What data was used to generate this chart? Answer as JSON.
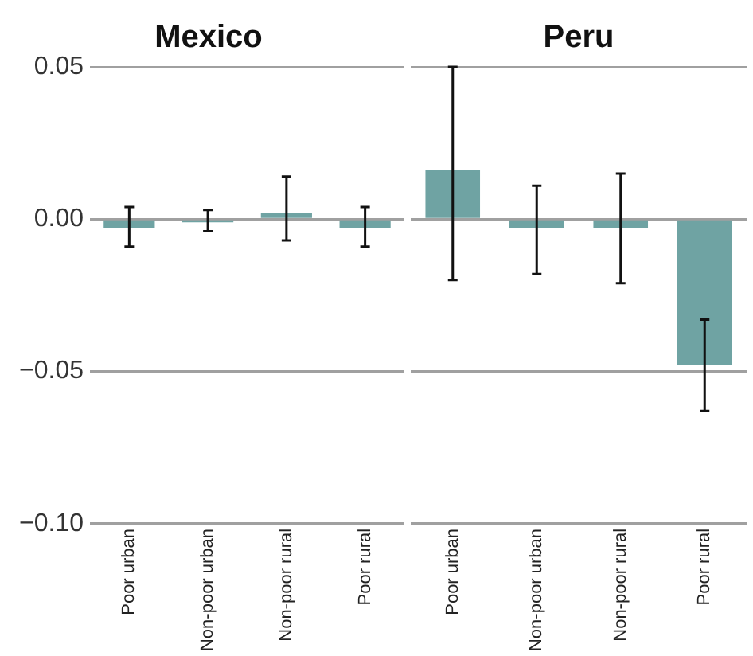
{
  "chart_data": [
    {
      "type": "bar",
      "title": "Mexico",
      "categories": [
        "Poor urban",
        "Non-poor urban",
        "Non-poor rural",
        "Poor rural"
      ],
      "values": [
        -0.003,
        -0.001,
        0.002,
        -0.003
      ],
      "color": "#6fa3a3",
      "errors": [
        [
          -0.009,
          0.004
        ],
        [
          -0.004,
          0.003
        ],
        [
          -0.007,
          0.014
        ],
        [
          -0.009,
          0.004
        ]
      ],
      "ylim": [
        -0.1,
        0.05
      ],
      "yticks": [
        {
          "value": -0.1,
          "label": "−0.10"
        },
        {
          "value": -0.05,
          "label": "−0.05"
        },
        {
          "value": 0,
          "label": "0.00"
        },
        {
          "value": 0.05,
          "label": "0.05"
        }
      ],
      "grid": "y",
      "legend": false
    },
    {
      "type": "bar",
      "title": "Peru",
      "categories": [
        "Poor urban",
        "Non-poor urban",
        "Non-poor rural",
        "Poor rural"
      ],
      "values": [
        0.016,
        -0.003,
        -0.003,
        -0.048
      ],
      "color": "#6fa3a3",
      "errors": [
        [
          -0.02,
          0.05
        ],
        [
          -0.018,
          0.011
        ],
        [
          -0.021,
          0.015
        ],
        [
          -0.063,
          -0.033
        ]
      ],
      "ylim": [
        -0.1,
        0.05
      ],
      "yticks": [
        -0.1,
        -0.05,
        0,
        0.05
      ],
      "grid": "y",
      "legend": false,
      "tick_labels": "x"
    }
  ]
}
